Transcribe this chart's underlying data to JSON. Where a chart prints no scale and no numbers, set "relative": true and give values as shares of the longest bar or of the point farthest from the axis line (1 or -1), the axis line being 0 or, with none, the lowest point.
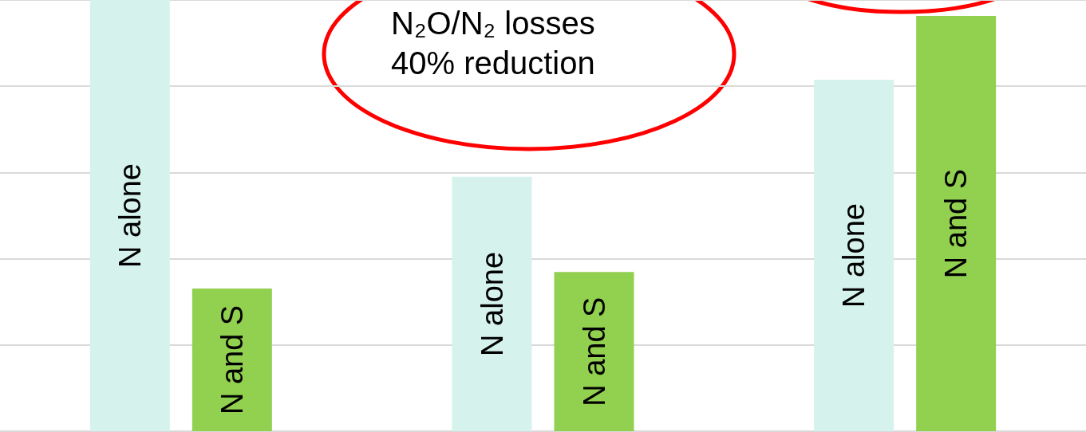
{
  "chart_data": {
    "type": "bar",
    "relative": true,
    "categories": [
      null,
      null,
      null
    ],
    "series": [
      {
        "name": "N alone",
        "color": "#d5f3ec",
        "values": [
          1,
          0.59,
          0.815
        ]
      },
      {
        "name": "N and S",
        "color": "#92d050",
        "values": [
          0.331,
          0.369,
          0.963
        ]
      }
    ],
    "annotations": [
      "N₂O/N₂ losses\n40% reduction"
    ],
    "grid": true,
    "legend": false
  }
}
